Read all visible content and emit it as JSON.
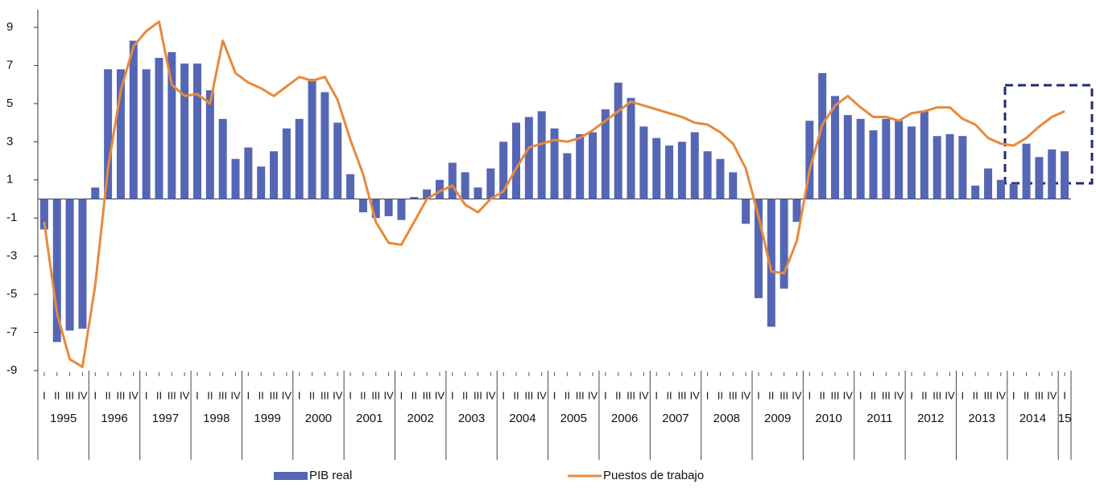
{
  "chart_data": {
    "type": "combo",
    "categories": [
      "I",
      "II",
      "III",
      "IV",
      "I",
      "II",
      "III",
      "IV",
      "I",
      "II",
      "III",
      "IV",
      "I",
      "II",
      "III",
      "IV",
      "I",
      "II",
      "III",
      "IV",
      "I",
      "II",
      "III",
      "IV",
      "I",
      "II",
      "III",
      "IV",
      "I",
      "II",
      "III",
      "IV",
      "I",
      "II",
      "III",
      "IV",
      "I",
      "II",
      "III",
      "IV",
      "I",
      "II",
      "III",
      "IV",
      "I",
      "II",
      "III",
      "IV",
      "I",
      "II",
      "III",
      "IV",
      "I",
      "II",
      "III",
      "IV",
      "I",
      "II",
      "III",
      "IV",
      "I",
      "II",
      "III",
      "IV",
      "I",
      "II",
      "III",
      "IV",
      "I",
      "II",
      "III",
      "IV",
      "I",
      "II",
      "III",
      "IV",
      "I",
      "II",
      "III",
      "IV",
      "I"
    ],
    "years": [
      "1995",
      "1996",
      "1997",
      "1998",
      "1999",
      "2000",
      "2001",
      "2002",
      "2003",
      "2004",
      "2005",
      "2006",
      "2007",
      "2008",
      "2009",
      "2010",
      "2011",
      "2012",
      "2013",
      "2014",
      "15"
    ],
    "series": [
      {
        "name": "PIB real",
        "type": "bar",
        "color": "#5466b4",
        "values": [
          -1.6,
          -7.5,
          -6.9,
          -6.8,
          0.6,
          6.8,
          6.8,
          8.3,
          6.8,
          7.4,
          7.7,
          7.1,
          7.1,
          5.7,
          4.2,
          2.1,
          2.7,
          1.7,
          2.5,
          3.7,
          4.2,
          6.3,
          5.6,
          4.0,
          1.3,
          -0.7,
          -1.0,
          -0.9,
          -1.1,
          0.1,
          0.5,
          1.0,
          1.9,
          1.4,
          0.6,
          1.6,
          3.0,
          4.0,
          4.3,
          4.6,
          3.7,
          2.4,
          3.4,
          3.5,
          4.7,
          6.1,
          5.3,
          3.8,
          3.2,
          2.8,
          3.0,
          3.5,
          2.5,
          2.1,
          1.4,
          -1.3,
          -5.2,
          -6.7,
          -4.7,
          -1.2,
          4.1,
          6.6,
          5.4,
          4.4,
          4.2,
          3.6,
          4.2,
          4.1,
          3.8,
          4.6,
          3.3,
          3.4,
          3.3,
          0.7,
          1.6,
          1.0,
          0.8,
          2.9,
          2.2,
          2.6,
          2.5
        ]
      },
      {
        "name": "Puestos de trabajo",
        "type": "line",
        "color": "#e8893a",
        "values": [
          -1.2,
          -6.0,
          -8.4,
          -8.8,
          -4.5,
          1.6,
          5.7,
          8.0,
          8.8,
          9.3,
          6.0,
          5.4,
          5.5,
          5.0,
          8.3,
          6.6,
          6.1,
          5.8,
          5.4,
          5.9,
          6.4,
          6.2,
          6.4,
          5.2,
          3.1,
          1.3,
          -1.2,
          -2.3,
          -2.4,
          -1.2,
          0.0,
          0.4,
          0.7,
          -0.3,
          -0.7,
          0.0,
          0.4,
          1.6,
          2.7,
          2.9,
          3.1,
          3.0,
          3.2,
          3.6,
          4.1,
          4.6,
          5.1,
          4.9,
          4.7,
          4.5,
          4.3,
          4.0,
          3.9,
          3.5,
          2.9,
          1.6,
          -0.9,
          -3.8,
          -3.9,
          -2.2,
          1.5,
          3.9,
          4.9,
          5.4,
          4.8,
          4.3,
          4.3,
          4.1,
          4.5,
          4.6,
          4.8,
          4.8,
          4.2,
          3.9,
          3.2,
          2.9,
          2.8,
          3.2,
          3.8,
          4.3,
          4.6
        ]
      }
    ],
    "ylim": [
      -9,
      9
    ],
    "yticks": [
      9,
      7,
      5,
      3,
      1,
      -1,
      -3,
      -5,
      -7,
      -9
    ],
    "grid": false
  }
}
